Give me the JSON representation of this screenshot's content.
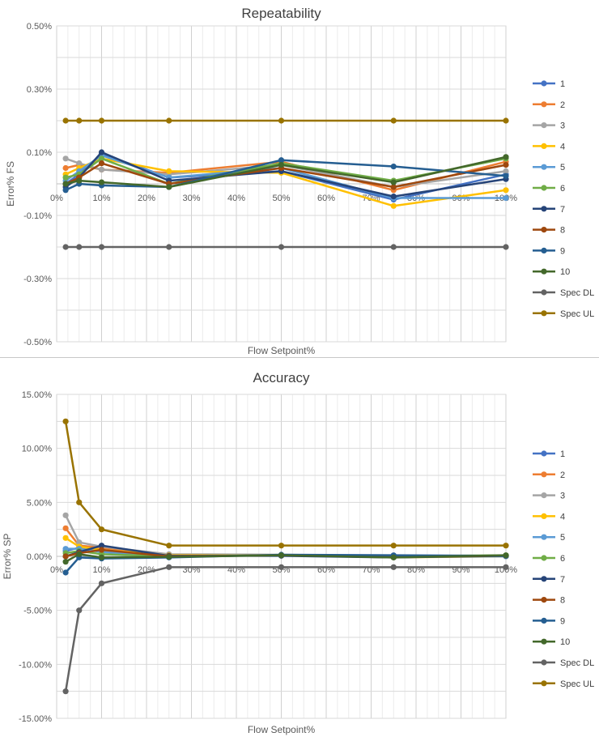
{
  "chart_data": [
    {
      "type": "line",
      "title": "Repeatability",
      "xlabel": "Flow Setpoint%",
      "ylabel": "Error% FS",
      "xlim": [
        0,
        100
      ],
      "ylim": [
        -0.5,
        0.5
      ],
      "x_ticks": [
        "0%",
        "10%",
        "20%",
        "30%",
        "40%",
        "50%",
        "60%",
        "70%",
        "80%",
        "90%",
        "100%"
      ],
      "y_ticks": [
        "-0.50%",
        "-0.30%",
        "-0.10%",
        "0.10%",
        "0.30%",
        "0.50%"
      ],
      "x": [
        2,
        5,
        10,
        25,
        50,
        75,
        100
      ],
      "grid": true,
      "legend_position": "right",
      "series": [
        {
          "name": "1",
          "color": "#4472C4",
          "values": [
            0.0,
            0.03,
            0.095,
            0.02,
            0.04,
            -0.05,
            0.03
          ]
        },
        {
          "name": "2",
          "color": "#ED7D31",
          "values": [
            0.05,
            0.06,
            0.045,
            0.035,
            0.07,
            -0.02,
            0.07
          ]
        },
        {
          "name": "3",
          "color": "#A5A5A5",
          "values": [
            0.08,
            0.065,
            0.045,
            0.03,
            0.06,
            -0.01,
            0.04
          ]
        },
        {
          "name": "4",
          "color": "#FFC000",
          "values": [
            0.03,
            0.05,
            0.08,
            0.04,
            0.035,
            -0.07,
            -0.02
          ]
        },
        {
          "name": "5",
          "color": "#5B9BD5",
          "values": [
            0.01,
            0.04,
            0.09,
            0.02,
            0.05,
            -0.045,
            -0.045
          ]
        },
        {
          "name": "6",
          "color": "#70AD47",
          "values": [
            0.02,
            0.03,
            0.08,
            0.0,
            0.065,
            0.01,
            0.08
          ]
        },
        {
          "name": "7",
          "color": "#264478",
          "values": [
            -0.01,
            0.02,
            0.1,
            0.01,
            0.04,
            -0.04,
            0.015
          ]
        },
        {
          "name": "8",
          "color": "#9E480E",
          "values": [
            0.0,
            0.02,
            0.065,
            0.0,
            0.05,
            -0.01,
            0.06
          ]
        },
        {
          "name": "9",
          "color": "#255E91",
          "values": [
            -0.02,
            0.0,
            -0.005,
            -0.01,
            0.075,
            0.055,
            0.025
          ]
        },
        {
          "name": "10",
          "color": "#43682B",
          "values": [
            0.0,
            0.01,
            0.005,
            -0.01,
            0.06,
            0.005,
            0.085
          ]
        },
        {
          "name": "Spec DL",
          "color": "#636363",
          "values": [
            -0.2,
            -0.2,
            -0.2,
            -0.2,
            -0.2,
            -0.2,
            -0.2
          ]
        },
        {
          "name": "Spec UL",
          "color": "#997300",
          "values": [
            0.2,
            0.2,
            0.2,
            0.2,
            0.2,
            0.2,
            0.2
          ]
        }
      ]
    },
    {
      "type": "line",
      "title": "Accuracy",
      "xlabel": "Flow Setpoint%",
      "ylabel": "Error% SP",
      "xlim": [
        0,
        100
      ],
      "ylim": [
        -15,
        15
      ],
      "x_ticks": [
        "0%",
        "10%",
        "20%",
        "30%",
        "40%",
        "50%",
        "60%",
        "70%",
        "80%",
        "90%",
        "100%"
      ],
      "y_ticks": [
        "-15.00%",
        "-10.00%",
        "-5.00%",
        "0.00%",
        "5.00%",
        "10.00%",
        "15.00%"
      ],
      "x": [
        2,
        5,
        10,
        25,
        50,
        75,
        100
      ],
      "grid": true,
      "legend_position": "right",
      "series": [
        {
          "name": "1",
          "color": "#4472C4",
          "values": [
            0.5,
            0.8,
            0.5,
            0.1,
            0.1,
            0.0,
            0.05
          ]
        },
        {
          "name": "2",
          "color": "#ED7D31",
          "values": [
            2.6,
            1.0,
            0.8,
            0.1,
            0.1,
            0.0,
            0.05
          ]
        },
        {
          "name": "3",
          "color": "#A5A5A5",
          "values": [
            3.8,
            1.3,
            0.9,
            0.2,
            0.15,
            0.05,
            0.05
          ]
        },
        {
          "name": "4",
          "color": "#FFC000",
          "values": [
            1.7,
            0.9,
            0.6,
            0.1,
            0.1,
            -0.1,
            0.0
          ]
        },
        {
          "name": "5",
          "color": "#5B9BD5",
          "values": [
            0.7,
            0.7,
            0.4,
            0.05,
            0.1,
            -0.05,
            0.0
          ]
        },
        {
          "name": "6",
          "color": "#70AD47",
          "values": [
            0.3,
            0.5,
            0.2,
            0.0,
            0.1,
            0.0,
            0.1
          ]
        },
        {
          "name": "7",
          "color": "#264478",
          "values": [
            0.0,
            0.4,
            1.0,
            0.05,
            0.05,
            -0.1,
            0.05
          ]
        },
        {
          "name": "8",
          "color": "#9E480E",
          "values": [
            0.0,
            0.3,
            0.6,
            0.0,
            0.1,
            0.0,
            0.05
          ]
        },
        {
          "name": "9",
          "color": "#255E91",
          "values": [
            -1.5,
            -0.1,
            -0.2,
            -0.1,
            0.15,
            0.1,
            0.05
          ]
        },
        {
          "name": "10",
          "color": "#43682B",
          "values": [
            -0.5,
            0.2,
            -0.1,
            -0.05,
            0.1,
            -0.1,
            0.1
          ]
        },
        {
          "name": "Spec DL",
          "color": "#636363",
          "values": [
            -12.5,
            -5.0,
            -2.5,
            -1.0,
            -1.0,
            -1.0,
            -1.0
          ]
        },
        {
          "name": "Spec UL",
          "color": "#997300",
          "values": [
            12.5,
            5.0,
            2.5,
            1.0,
            1.0,
            1.0,
            1.0
          ]
        }
      ]
    }
  ]
}
